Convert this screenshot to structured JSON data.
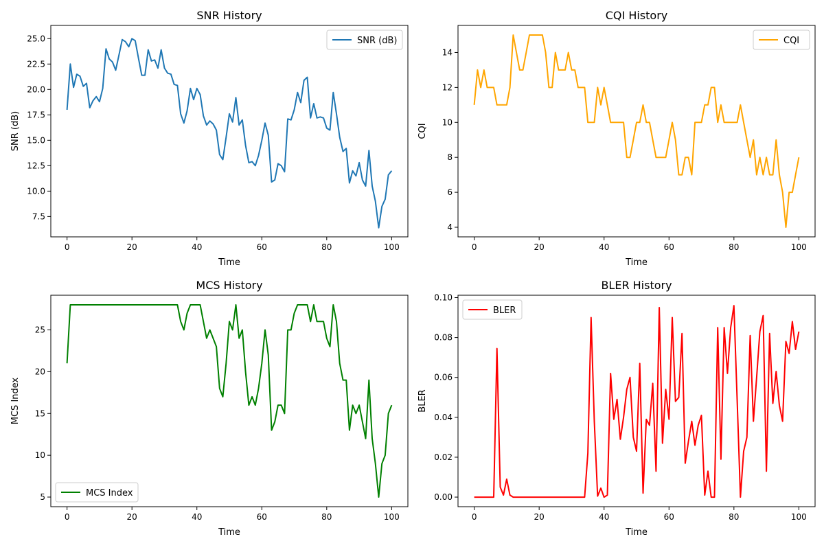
{
  "chart_data": [
    {
      "type": "line",
      "title": "SNR History",
      "xlabel": "Time",
      "ylabel": "SNR (dB)",
      "xlim": [
        -5,
        105
      ],
      "ylim": [
        5.5,
        26.3
      ],
      "xticks": [
        0,
        20,
        40,
        60,
        80,
        100
      ],
      "yticks": [
        7.5,
        10.0,
        12.5,
        15.0,
        17.5,
        20.0,
        22.5,
        25.0
      ],
      "ytick_decimals": 1,
      "legend": "upper-right",
      "series": [
        {
          "name": "SNR (dB)",
          "color": "#1f77b4",
          "x": [
            0,
            1,
            2,
            3,
            4,
            5,
            6,
            7,
            8,
            9,
            10,
            11,
            12,
            13,
            14,
            15,
            16,
            17,
            18,
            19,
            20,
            21,
            22,
            23,
            24,
            25,
            26,
            27,
            28,
            29,
            30,
            31,
            32,
            33,
            34,
            35,
            36,
            37,
            38,
            39,
            40,
            41,
            42,
            43,
            44,
            45,
            46,
            47,
            48,
            49,
            50,
            51,
            52,
            53,
            54,
            55,
            56,
            57,
            58,
            59,
            60,
            61,
            62,
            63,
            64,
            65,
            66,
            67,
            68,
            69,
            70,
            71,
            72,
            73,
            74,
            75,
            76,
            77,
            78,
            79,
            80,
            81,
            82,
            83,
            84,
            85,
            86,
            87,
            88,
            89,
            90,
            91,
            92,
            93,
            94,
            95,
            96,
            97,
            98,
            99,
            100
          ],
          "values": [
            18.0,
            22.5,
            20.2,
            21.5,
            21.3,
            20.3,
            20.6,
            18.2,
            18.9,
            19.3,
            18.8,
            20.1,
            24.0,
            23.0,
            22.7,
            21.9,
            23.4,
            24.9,
            24.7,
            24.2,
            25.0,
            24.8,
            23.1,
            21.4,
            21.4,
            23.9,
            22.8,
            22.9,
            22.1,
            23.9,
            22.1,
            21.6,
            21.5,
            20.5,
            20.4,
            17.6,
            16.7,
            17.9,
            20.1,
            19.0,
            20.1,
            19.5,
            17.4,
            16.5,
            16.9,
            16.6,
            16.0,
            13.6,
            13.1,
            15.3,
            17.6,
            16.8,
            19.2,
            16.5,
            17.0,
            14.5,
            12.8,
            12.9,
            12.5,
            13.5,
            15.0,
            16.7,
            15.5,
            10.9,
            11.1,
            12.7,
            12.5,
            11.9,
            17.1,
            17.0,
            18.0,
            19.7,
            18.7,
            20.9,
            21.2,
            17.2,
            18.6,
            17.2,
            17.3,
            17.2,
            16.2,
            16.0,
            19.7,
            17.6,
            15.3,
            13.9,
            14.2,
            10.8,
            12.0,
            11.5,
            12.8,
            11.1,
            10.5,
            14.0,
            10.5,
            9.0,
            6.4,
            8.5,
            9.2,
            11.6,
            12.0
          ]
        }
      ]
    },
    {
      "type": "line",
      "title": "CQI History",
      "xlabel": "Time",
      "ylabel": "CQI",
      "xlim": [
        -5,
        105
      ],
      "ylim": [
        3.45,
        15.55
      ],
      "xticks": [
        0,
        20,
        40,
        60,
        80,
        100
      ],
      "yticks": [
        4,
        6,
        8,
        10,
        12,
        14
      ],
      "ytick_decimals": 0,
      "legend": "upper-right",
      "series": [
        {
          "name": "CQI",
          "color": "#ffa500",
          "x": [
            0,
            1,
            2,
            3,
            4,
            5,
            6,
            7,
            8,
            9,
            10,
            11,
            12,
            13,
            14,
            15,
            16,
            17,
            18,
            19,
            20,
            21,
            22,
            23,
            24,
            25,
            26,
            27,
            28,
            29,
            30,
            31,
            32,
            33,
            34,
            35,
            36,
            37,
            38,
            39,
            40,
            41,
            42,
            43,
            44,
            45,
            46,
            47,
            48,
            49,
            50,
            51,
            52,
            53,
            54,
            55,
            56,
            57,
            58,
            59,
            60,
            61,
            62,
            63,
            64,
            65,
            66,
            67,
            68,
            69,
            70,
            71,
            72,
            73,
            74,
            75,
            76,
            77,
            78,
            79,
            80,
            81,
            82,
            83,
            84,
            85,
            86,
            87,
            88,
            89,
            90,
            91,
            92,
            93,
            94,
            95,
            96,
            97,
            98,
            99,
            100
          ],
          "values": [
            11,
            13,
            12,
            13,
            12,
            12,
            12,
            11,
            11,
            11,
            11,
            12,
            15,
            14,
            13,
            13,
            14,
            15,
            15,
            15,
            15,
            15,
            14,
            12,
            12,
            14,
            13,
            13,
            13,
            14,
            13,
            13,
            12,
            12,
            12,
            10,
            10,
            10,
            12,
            11,
            12,
            11,
            10,
            10,
            10,
            10,
            10,
            8,
            8,
            9,
            10,
            10,
            11,
            10,
            10,
            9,
            8,
            8,
            8,
            8,
            9,
            10,
            9,
            7,
            7,
            8,
            8,
            7,
            10,
            10,
            10,
            11,
            11,
            12,
            12,
            10,
            11,
            10,
            10,
            10,
            10,
            10,
            11,
            10,
            9,
            8,
            9,
            7,
            8,
            7,
            8,
            7,
            7,
            9,
            7,
            6,
            4,
            6,
            6,
            7,
            8
          ]
        }
      ]
    },
    {
      "type": "line",
      "title": "MCS History",
      "xlabel": "Time",
      "ylabel": "MCS Index",
      "xlim": [
        -5,
        105
      ],
      "ylim": [
        3.85,
        29.15
      ],
      "xticks": [
        0,
        20,
        40,
        60,
        80,
        100
      ],
      "yticks": [
        5,
        10,
        15,
        20,
        25
      ],
      "ytick_decimals": 0,
      "legend": "lower-left",
      "series": [
        {
          "name": "MCS Index",
          "color": "#008000",
          "x": [
            0,
            1,
            2,
            3,
            4,
            5,
            6,
            7,
            8,
            9,
            10,
            11,
            12,
            13,
            14,
            15,
            16,
            17,
            18,
            19,
            20,
            21,
            22,
            23,
            24,
            25,
            26,
            27,
            28,
            29,
            30,
            31,
            32,
            33,
            34,
            35,
            36,
            37,
            38,
            39,
            40,
            41,
            42,
            43,
            44,
            45,
            46,
            47,
            48,
            49,
            50,
            51,
            52,
            53,
            54,
            55,
            56,
            57,
            58,
            59,
            60,
            61,
            62,
            63,
            64,
            65,
            66,
            67,
            68,
            69,
            70,
            71,
            72,
            73,
            74,
            75,
            76,
            77,
            78,
            79,
            80,
            81,
            82,
            83,
            84,
            85,
            86,
            87,
            88,
            89,
            90,
            91,
            92,
            93,
            94,
            95,
            96,
            97,
            98,
            99,
            100
          ],
          "values": [
            21,
            28,
            28,
            28,
            28,
            28,
            28,
            28,
            28,
            28,
            28,
            28,
            28,
            28,
            28,
            28,
            28,
            28,
            28,
            28,
            28,
            28,
            28,
            28,
            28,
            28,
            28,
            28,
            28,
            28,
            28,
            28,
            28,
            28,
            28,
            26,
            25,
            27,
            28,
            28,
            28,
            28,
            26,
            24,
            25,
            24,
            23,
            18,
            17,
            21,
            26,
            25,
            28,
            24,
            25,
            20,
            16,
            17,
            16,
            18,
            21,
            25,
            22,
            13,
            14,
            16,
            16,
            15,
            25,
            25,
            27,
            28,
            28,
            28,
            28,
            26,
            28,
            26,
            26,
            26,
            24,
            23,
            28,
            26,
            21,
            19,
            19,
            13,
            16,
            15,
            16,
            14,
            12,
            19,
            12,
            9,
            5,
            9,
            10,
            15,
            16
          ]
        }
      ]
    },
    {
      "type": "line",
      "title": "BLER History",
      "xlabel": "Time",
      "ylabel": "BLER",
      "xlim": [
        -5,
        105
      ],
      "ylim": [
        -0.0048,
        0.1012
      ],
      "xticks": [
        0,
        20,
        40,
        60,
        80,
        100
      ],
      "yticks": [
        0.0,
        0.02,
        0.04,
        0.06,
        0.08,
        0.1
      ],
      "ytick_decimals": 2,
      "legend": "upper-left",
      "series": [
        {
          "name": "BLER",
          "color": "#ff0000",
          "x": [
            0,
            1,
            2,
            3,
            4,
            5,
            6,
            7,
            8,
            9,
            10,
            11,
            12,
            13,
            14,
            15,
            16,
            17,
            18,
            19,
            20,
            21,
            22,
            23,
            24,
            25,
            26,
            27,
            28,
            29,
            30,
            31,
            32,
            33,
            34,
            35,
            36,
            37,
            38,
            39,
            40,
            41,
            42,
            43,
            44,
            45,
            46,
            47,
            48,
            49,
            50,
            51,
            52,
            53,
            54,
            55,
            56,
            57,
            58,
            59,
            60,
            61,
            62,
            63,
            64,
            65,
            66,
            67,
            68,
            69,
            70,
            71,
            72,
            73,
            74,
            75,
            76,
            77,
            78,
            79,
            80,
            81,
            82,
            83,
            84,
            85,
            86,
            87,
            88,
            89,
            90,
            91,
            92,
            93,
            94,
            95,
            96,
            97,
            98,
            99,
            100
          ],
          "values": [
            0.0,
            0.0,
            0.0,
            0.0,
            0.0,
            0.0,
            0.0,
            0.0745,
            0.005,
            0.001,
            0.009,
            0.001,
            0.0,
            0.0,
            0.0,
            0.0,
            0.0,
            0.0,
            0.0,
            0.0,
            0.0,
            0.0,
            0.0,
            0.0,
            0.0,
            0.0,
            0.0,
            0.0,
            0.0,
            0.0,
            0.0,
            0.0,
            0.0,
            0.0,
            0.0,
            0.022,
            0.09,
            0.038,
            0.0005,
            0.0045,
            0.0,
            0.001,
            0.062,
            0.039,
            0.049,
            0.029,
            0.04,
            0.054,
            0.06,
            0.03,
            0.023,
            0.067,
            0.002,
            0.039,
            0.036,
            0.057,
            0.013,
            0.095,
            0.027,
            0.054,
            0.039,
            0.09,
            0.048,
            0.05,
            0.082,
            0.017,
            0.028,
            0.038,
            0.026,
            0.036,
            0.041,
            0.001,
            0.013,
            0.0,
            0.0,
            0.085,
            0.019,
            0.085,
            0.062,
            0.085,
            0.096,
            0.049,
            0.0,
            0.023,
            0.03,
            0.081,
            0.038,
            0.06,
            0.083,
            0.091,
            0.013,
            0.082,
            0.047,
            0.063,
            0.046,
            0.038,
            0.078,
            0.072,
            0.088,
            0.074,
            0.083
          ]
        }
      ]
    }
  ]
}
